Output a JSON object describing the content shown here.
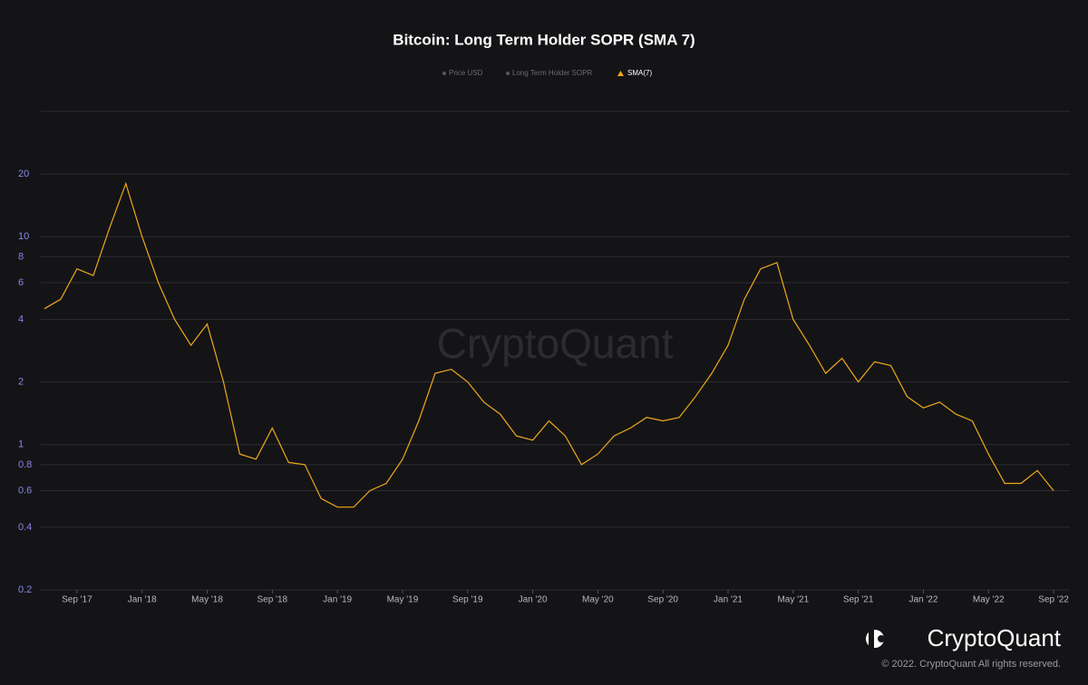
{
  "chart_data": {
    "type": "line",
    "title": "Bitcoin: Long Term Holder SOPR (SMA 7)",
    "legend": [
      "Price USD",
      "Long Term Holder SOPR"
    ],
    "watermark": "CryptoQuant",
    "brand": "CryptoQuant",
    "copyright": "© 2022. CryptoQuant All rights reserved.",
    "log_scale": true,
    "grid": true,
    "x": [
      "2017-07",
      "2017-08",
      "2017-09",
      "2017-10",
      "2017-11",
      "2017-12",
      "2018-01",
      "2018-02",
      "2018-03",
      "2018-04",
      "2018-05",
      "2018-06",
      "2018-07",
      "2018-08",
      "2018-09",
      "2018-10",
      "2018-11",
      "2018-12",
      "2019-01",
      "2019-02",
      "2019-03",
      "2019-04",
      "2019-05",
      "2019-06",
      "2019-07",
      "2019-08",
      "2019-09",
      "2019-10",
      "2019-11",
      "2019-12",
      "2020-01",
      "2020-02",
      "2020-03",
      "2020-04",
      "2020-05",
      "2020-06",
      "2020-07",
      "2020-08",
      "2020-09",
      "2020-10",
      "2020-11",
      "2020-12",
      "2021-01",
      "2021-02",
      "2021-03",
      "2021-04",
      "2021-05",
      "2021-06",
      "2021-07",
      "2021-08",
      "2021-09",
      "2021-10",
      "2021-11",
      "2021-12",
      "2022-01",
      "2022-02",
      "2022-03",
      "2022-04",
      "2022-05",
      "2022-06",
      "2022-07",
      "2022-08",
      "2022-09"
    ],
    "series": [
      {
        "name": "SMA(7)",
        "color": "#f0a818",
        "values": [
          4.5,
          5,
          7,
          6.5,
          11,
          18,
          10,
          6,
          4,
          3,
          3.8,
          2,
          0.9,
          0.85,
          1.2,
          0.82,
          0.8,
          0.55,
          0.5,
          0.5,
          0.6,
          0.65,
          0.85,
          1.3,
          2.2,
          2.3,
          2,
          1.6,
          1.4,
          1.1,
          1.05,
          1.3,
          1.1,
          0.8,
          0.9,
          1.1,
          1.2,
          1.35,
          1.3,
          1.35,
          1.7,
          2.2,
          3,
          5,
          7,
          7.5,
          4,
          3,
          2.2,
          2.6,
          2,
          2.5,
          2.4,
          1.7,
          1.5,
          1.6,
          1.4,
          1.3,
          0.9,
          0.65,
          0.65,
          0.75,
          0.6
        ]
      }
    ],
    "xlim": [
      "2017-07",
      "2022-10"
    ],
    "xticks": [
      {
        "value": "2017-09",
        "label": "Sep '17"
      },
      {
        "value": "2018-01",
        "label": "Jan '18"
      },
      {
        "value": "2018-05",
        "label": "May '18"
      },
      {
        "value": "2018-09",
        "label": "Sep '18"
      },
      {
        "value": "2019-01",
        "label": "Jan '19"
      },
      {
        "value": "2019-05",
        "label": "May '19"
      },
      {
        "value": "2019-09",
        "label": "Sep '19"
      },
      {
        "value": "2020-01",
        "label": "Jan '20"
      },
      {
        "value": "2020-05",
        "label": "May '20"
      },
      {
        "value": "2020-09",
        "label": "Sep '20"
      },
      {
        "value": "2021-01",
        "label": "Jan '21"
      },
      {
        "value": "2021-05",
        "label": "May '21"
      },
      {
        "value": "2021-09",
        "label": "Sep '21"
      },
      {
        "value": "2022-01",
        "label": "Jan '22"
      },
      {
        "value": "2022-05",
        "label": "May '22"
      },
      {
        "value": "2022-09",
        "label": "Sep '22"
      }
    ],
    "ylim": [
      0.2,
      40
    ],
    "yticks": [
      0.2,
      0.4,
      0.6,
      0.8,
      1,
      2,
      4,
      6,
      8,
      10,
      20
    ]
  }
}
